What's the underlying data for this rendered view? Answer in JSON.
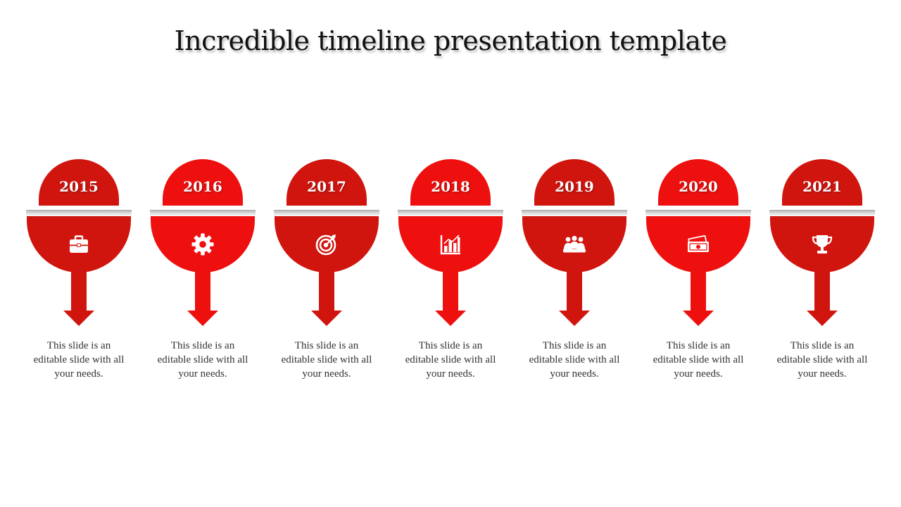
{
  "title": "Incredible timeline presentation template",
  "colors": {
    "dark_red": "#d0150f",
    "bright_red": "#ee0f0f",
    "white": "#ffffff"
  },
  "steps": [
    {
      "year": "2015",
      "icon": "briefcase-icon",
      "text": "This slide is an editable slide with all your needs.",
      "tone": "dark"
    },
    {
      "year": "2016",
      "icon": "gear-icon",
      "text": "This slide is an editable slide with all your needs.",
      "tone": "bright"
    },
    {
      "year": "2017",
      "icon": "target-icon",
      "text": "This slide is an editable slide with all your needs.",
      "tone": "dark"
    },
    {
      "year": "2018",
      "icon": "bar-chart-icon",
      "text": "This slide is an editable slide with all your needs.",
      "tone": "bright"
    },
    {
      "year": "2019",
      "icon": "team-meeting-icon",
      "text": "This slide is an editable slide with all your needs.",
      "tone": "dark"
    },
    {
      "year": "2020",
      "icon": "money-icon",
      "text": "This slide is an editable slide with all your needs.",
      "tone": "bright"
    },
    {
      "year": "2021",
      "icon": "trophy-icon",
      "text": "This slide is an editable slide with all your needs.",
      "tone": "dark"
    }
  ]
}
